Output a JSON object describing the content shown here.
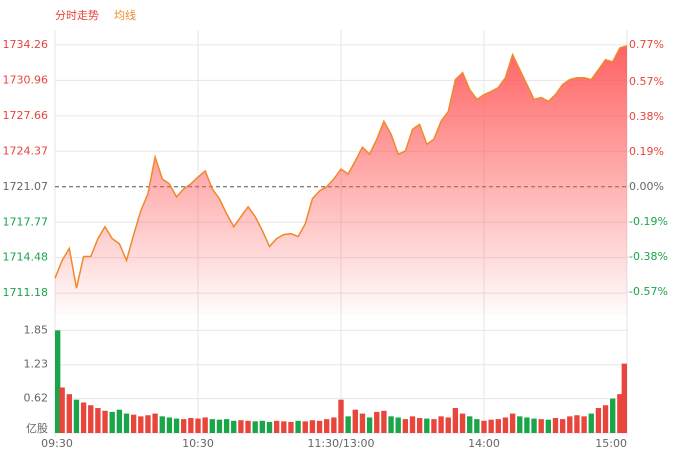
{
  "chart_data": {
    "type": "line",
    "title": "分时走势",
    "categories": [
      "09:30",
      null,
      null,
      null,
      null,
      null,
      null,
      null,
      null,
      null,
      null,
      null,
      null,
      null,
      null,
      null,
      null,
      null,
      null,
      null,
      "10:30",
      null,
      null,
      null,
      null,
      null,
      null,
      null,
      null,
      null,
      null,
      null,
      null,
      null,
      null,
      null,
      null,
      null,
      null,
      null,
      "11:30/13:00",
      null,
      null,
      null,
      null,
      null,
      null,
      null,
      null,
      null,
      null,
      null,
      null,
      null,
      null,
      null,
      null,
      null,
      null,
      null,
      "14:00",
      null,
      null,
      null,
      null,
      null,
      null,
      null,
      null,
      null,
      null,
      null,
      null,
      null,
      null,
      null,
      null,
      null,
      null,
      null,
      "15:00"
    ],
    "series": [
      {
        "name": "均线",
        "color": "#f0882c",
        "values": [
          1712.56,
          1714.22,
          1715.33,
          1711.64,
          1714.59,
          1714.59,
          1716.25,
          1717.36,
          1716.25,
          1715.79,
          1714.22,
          1716.62,
          1718.84,
          1720.41,
          1723.83,
          1721.8,
          1721.33,
          1720.13,
          1720.87,
          1721.33,
          1721.98,
          1722.53,
          1720.87,
          1719.95,
          1718.56,
          1717.36,
          1718.29,
          1719.21,
          1718.29,
          1716.99,
          1715.52,
          1716.25,
          1716.62,
          1716.71,
          1716.44,
          1717.64,
          1719.95,
          1720.69,
          1721.07,
          1721.8,
          1722.72,
          1722.26,
          1723.46,
          1724.75,
          1724.1,
          1725.49,
          1727.15,
          1725.95,
          1724.1,
          1724.38,
          1726.41,
          1726.87,
          1725.03,
          1725.49,
          1727.15,
          1728.07,
          1731.03,
          1731.67,
          1730.1,
          1729.18,
          1729.64,
          1729.92,
          1730.29,
          1731.21,
          1733.34,
          1731.95,
          1730.57,
          1729.18,
          1729.36,
          1729.0,
          1729.64,
          1730.57,
          1731.03,
          1731.21,
          1731.21,
          1731.03,
          1731.95,
          1732.87,
          1732.68,
          1733.98,
          1734.17
        ]
      }
    ],
    "ylim": [
      1709.15,
      1735.64
    ],
    "yticks": [
      1734.26,
      1730.96,
      1727.66,
      1724.37,
      1721.07,
      1717.77,
      1714.48,
      1711.18
    ],
    "y2lim": [
      -0.696,
      0.851
    ],
    "y2ticks": [
      {
        "value": 0.77,
        "label": "0.77%"
      },
      {
        "value": 0.57,
        "label": "0.57%"
      },
      {
        "value": 0.38,
        "label": "0.38%"
      },
      {
        "value": 0.19,
        "label": "0.19%"
      },
      {
        "value": 0,
        "label": "0.00%"
      },
      {
        "value": -0.19,
        "label": "-0.19%"
      },
      {
        "value": -0.38,
        "label": "-0.38%"
      },
      {
        "value": -0.57,
        "label": "-0.57%"
      }
    ],
    "up_color": "#e8453c",
    "down_color": "#1aa54a",
    "volume": {
      "values": [
        1.85,
        0.82,
        0.7,
        0.6,
        0.55,
        0.5,
        0.45,
        0.4,
        0.38,
        0.42,
        0.35,
        0.33,
        0.3,
        0.32,
        0.35,
        0.3,
        0.28,
        0.26,
        0.25,
        0.27,
        0.26,
        0.28,
        0.25,
        0.24,
        0.25,
        0.22,
        0.23,
        0.22,
        0.21,
        0.22,
        0.2,
        0.22,
        0.21,
        0.2,
        0.22,
        0.21,
        0.23,
        0.22,
        0.25,
        0.28,
        0.6,
        0.3,
        0.42,
        0.35,
        0.28,
        0.38,
        0.4,
        0.3,
        0.28,
        0.25,
        0.3,
        0.27,
        0.26,
        0.25,
        0.3,
        0.28,
        0.45,
        0.35,
        0.3,
        0.25,
        0.22,
        0.24,
        0.25,
        0.28,
        0.35,
        0.3,
        0.28,
        0.26,
        0.25,
        0.24,
        0.27,
        0.25,
        0.3,
        0.32,
        0.3,
        0.35,
        0.45,
        0.5,
        0.62,
        0.7,
        1.25
      ],
      "ylim": [
        0,
        2.0
      ],
      "yticks": [
        1.85,
        1.23,
        0.62,
        {
          "value": 0,
          "label": "亿股"
        }
      ]
    }
  }
}
